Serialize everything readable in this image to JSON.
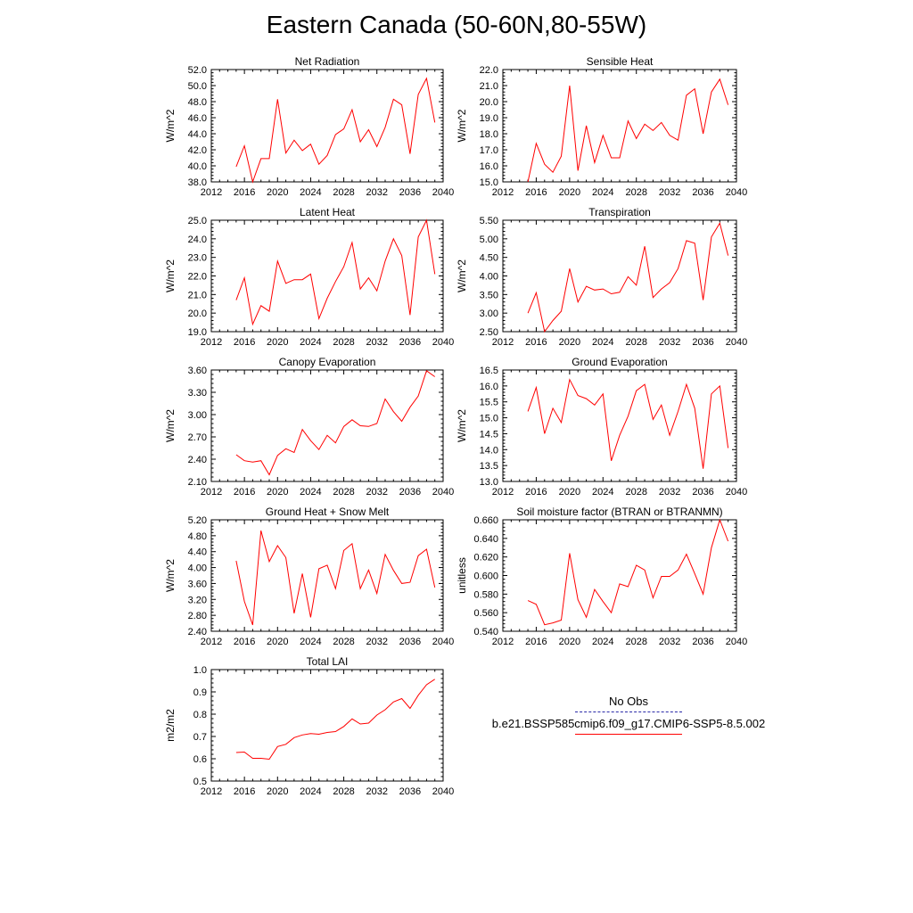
{
  "figure": {
    "title": "Eastern Canada (50-60N,80-55W)"
  },
  "colors": {
    "model_line": "#ff0000",
    "obs_line": "#2a2aa8",
    "axis": "#000000"
  },
  "legend": {
    "entries": [
      {
        "label": "No Obs",
        "style": "dashed",
        "color": "#2a2aa8"
      },
      {
        "label": "b.e21.BSSP585cmip6.f09_g17.CMIP6-SSP5-8.5.002",
        "style": "solid",
        "color": "#ff0000"
      }
    ]
  },
  "chart_data": [
    {
      "type": "line",
      "title": "Net Radiation",
      "ylabel": "W/m^2",
      "xlim": [
        2012,
        2040
      ],
      "xticks": [
        2012,
        2016,
        2020,
        2024,
        2028,
        2032,
        2036,
        2040
      ],
      "ylim": [
        38,
        52
      ],
      "yticks": [
        38,
        40,
        42,
        44,
        46,
        48,
        50,
        52
      ],
      "ytick_decimals": 1,
      "x": [
        2015,
        2016,
        2017,
        2018,
        2019,
        2020,
        2021,
        2022,
        2023,
        2024,
        2025,
        2026,
        2027,
        2028,
        2029,
        2030,
        2031,
        2032,
        2033,
        2034,
        2035,
        2036,
        2037,
        2038,
        2039
      ],
      "y": [
        39.9,
        42.5,
        38.0,
        40.9,
        40.9,
        48.3,
        41.6,
        43.2,
        41.9,
        42.7,
        40.2,
        41.3,
        43.9,
        44.6,
        47.0,
        43.0,
        44.5,
        42.4,
        44.8,
        48.3,
        47.6,
        41.5,
        48.9,
        50.9,
        45.4
      ]
    },
    {
      "type": "line",
      "title": "Sensible Heat",
      "ylabel": "W/m^2",
      "xlim": [
        2012,
        2040
      ],
      "xticks": [
        2012,
        2016,
        2020,
        2024,
        2028,
        2032,
        2036,
        2040
      ],
      "ylim": [
        15,
        22
      ],
      "yticks": [
        15,
        16,
        17,
        18,
        19,
        20,
        21,
        22
      ],
      "ytick_decimals": 1,
      "x": [
        2015,
        2016,
        2017,
        2018,
        2019,
        2020,
        2021,
        2022,
        2023,
        2024,
        2025,
        2026,
        2027,
        2028,
        2029,
        2030,
        2031,
        2032,
        2033,
        2034,
        2035,
        2036,
        2037,
        2038,
        2039
      ],
      "y": [
        15.0,
        17.4,
        16.1,
        15.6,
        16.6,
        21.0,
        15.7,
        18.5,
        16.2,
        17.9,
        16.5,
        16.5,
        18.8,
        17.7,
        18.6,
        18.2,
        18.7,
        17.9,
        17.6,
        20.4,
        20.8,
        18.0,
        20.6,
        21.4,
        19.8
      ]
    },
    {
      "type": "line",
      "title": "Latent Heat",
      "ylabel": "W/m^2",
      "xlim": [
        2012,
        2040
      ],
      "xticks": [
        2012,
        2016,
        2020,
        2024,
        2028,
        2032,
        2036,
        2040
      ],
      "ylim": [
        19,
        25
      ],
      "yticks": [
        19,
        20,
        21,
        22,
        23,
        24,
        25
      ],
      "ytick_decimals": 1,
      "x": [
        2015,
        2016,
        2017,
        2018,
        2019,
        2020,
        2021,
        2022,
        2023,
        2024,
        2025,
        2026,
        2027,
        2028,
        2029,
        2030,
        2031,
        2032,
        2033,
        2034,
        2035,
        2036,
        2037,
        2038,
        2039
      ],
      "y": [
        20.7,
        21.9,
        19.4,
        20.4,
        20.1,
        22.8,
        21.6,
        21.8,
        21.8,
        22.1,
        19.7,
        20.8,
        21.7,
        22.5,
        23.8,
        21.3,
        21.9,
        21.2,
        22.8,
        24.0,
        23.1,
        19.9,
        24.1,
        25.0,
        22.1
      ]
    },
    {
      "type": "line",
      "title": "Transpiration",
      "ylabel": "W/m^2",
      "xlim": [
        2012,
        2040
      ],
      "xticks": [
        2012,
        2016,
        2020,
        2024,
        2028,
        2032,
        2036,
        2040
      ],
      "ylim": [
        2.5,
        5.5
      ],
      "yticks": [
        2.5,
        3.0,
        3.5,
        4.0,
        4.5,
        5.0,
        5.5
      ],
      "ytick_decimals": 2,
      "x": [
        2015,
        2016,
        2017,
        2018,
        2019,
        2020,
        2021,
        2022,
        2023,
        2024,
        2025,
        2026,
        2027,
        2028,
        2029,
        2030,
        2031,
        2032,
        2033,
        2034,
        2035,
        2036,
        2037,
        2038,
        2039
      ],
      "y": [
        3.0,
        3.55,
        2.5,
        2.8,
        3.05,
        4.2,
        3.3,
        3.72,
        3.62,
        3.65,
        3.52,
        3.56,
        3.98,
        3.75,
        4.8,
        3.42,
        3.65,
        3.82,
        4.2,
        4.95,
        4.88,
        3.35,
        5.05,
        5.42,
        4.55
      ]
    },
    {
      "type": "line",
      "title": "Canopy Evaporation",
      "ylabel": "W/m^2",
      "xlim": [
        2012,
        2040
      ],
      "xticks": [
        2012,
        2016,
        2020,
        2024,
        2028,
        2032,
        2036,
        2040
      ],
      "ylim": [
        2.1,
        3.6
      ],
      "yticks": [
        2.1,
        2.4,
        2.7,
        3.0,
        3.3,
        3.6
      ],
      "ytick_decimals": 2,
      "x": [
        2015,
        2016,
        2017,
        2018,
        2019,
        2020,
        2021,
        2022,
        2023,
        2024,
        2025,
        2026,
        2027,
        2028,
        2029,
        2030,
        2031,
        2032,
        2033,
        2034,
        2035,
        2036,
        2037,
        2038,
        2039
      ],
      "y": [
        2.46,
        2.38,
        2.36,
        2.38,
        2.19,
        2.45,
        2.54,
        2.49,
        2.8,
        2.65,
        2.53,
        2.72,
        2.62,
        2.84,
        2.93,
        2.85,
        2.84,
        2.88,
        3.21,
        3.04,
        2.91,
        3.1,
        3.25,
        3.59,
        3.51
      ]
    },
    {
      "type": "line",
      "title": "Ground Evaporation",
      "ylabel": "W/m^2",
      "xlim": [
        2012,
        2040
      ],
      "xticks": [
        2012,
        2016,
        2020,
        2024,
        2028,
        2032,
        2036,
        2040
      ],
      "ylim": [
        13,
        16.5
      ],
      "yticks": [
        13.0,
        13.5,
        14.0,
        14.5,
        15.0,
        15.5,
        16.0,
        16.5
      ],
      "ytick_decimals": 1,
      "x": [
        2015,
        2016,
        2017,
        2018,
        2019,
        2020,
        2021,
        2022,
        2023,
        2024,
        2025,
        2026,
        2027,
        2028,
        2029,
        2030,
        2031,
        2032,
        2033,
        2034,
        2035,
        2036,
        2037,
        2038,
        2039
      ],
      "y": [
        15.2,
        15.95,
        14.5,
        15.3,
        14.85,
        16.2,
        15.7,
        15.6,
        15.4,
        15.75,
        13.65,
        14.45,
        15.05,
        15.85,
        16.05,
        14.95,
        15.4,
        14.45,
        15.2,
        16.05,
        15.3,
        13.4,
        15.75,
        16.0,
        14.05
      ]
    },
    {
      "type": "line",
      "title": "Ground Heat + Snow Melt",
      "ylabel": "W/m^2",
      "xlim": [
        2012,
        2040
      ],
      "xticks": [
        2012,
        2016,
        2020,
        2024,
        2028,
        2032,
        2036,
        2040
      ],
      "ylim": [
        2.4,
        5.2
      ],
      "yticks": [
        2.4,
        2.8,
        3.2,
        3.6,
        4.0,
        4.4,
        4.8,
        5.2
      ],
      "ytick_decimals": 2,
      "x": [
        2015,
        2016,
        2017,
        2018,
        2019,
        2020,
        2021,
        2022,
        2023,
        2024,
        2025,
        2026,
        2027,
        2028,
        2029,
        2030,
        2031,
        2032,
        2033,
        2034,
        2035,
        2036,
        2037,
        2038,
        2039
      ],
      "y": [
        4.17,
        3.15,
        2.56,
        4.93,
        4.15,
        4.55,
        4.25,
        2.85,
        3.85,
        2.75,
        3.97,
        4.06,
        3.47,
        4.43,
        4.6,
        3.47,
        3.94,
        3.35,
        4.33,
        3.93,
        3.6,
        3.63,
        4.3,
        4.46,
        3.5
      ]
    },
    {
      "type": "line",
      "title": "Soil moisture factor (BTRAN or BTRANMN)",
      "ylabel": "unitless",
      "xlim": [
        2012,
        2040
      ],
      "xticks": [
        2012,
        2016,
        2020,
        2024,
        2028,
        2032,
        2036,
        2040
      ],
      "ylim": [
        0.54,
        0.66
      ],
      "yticks": [
        0.54,
        0.56,
        0.58,
        0.6,
        0.62,
        0.64,
        0.66
      ],
      "ytick_decimals": 3,
      "x": [
        2015,
        2016,
        2017,
        2018,
        2019,
        2020,
        2021,
        2022,
        2023,
        2024,
        2025,
        2026,
        2027,
        2028,
        2029,
        2030,
        2031,
        2032,
        2033,
        2034,
        2035,
        2036,
        2037,
        2038,
        2039
      ],
      "y": [
        0.573,
        0.569,
        0.547,
        0.549,
        0.552,
        0.624,
        0.574,
        0.555,
        0.585,
        0.572,
        0.56,
        0.591,
        0.588,
        0.611,
        0.606,
        0.576,
        0.599,
        0.599,
        0.606,
        0.623,
        0.602,
        0.58,
        0.63,
        0.66,
        0.637
      ]
    },
    {
      "type": "line",
      "title": "Total LAI",
      "ylabel": "m2/m2",
      "xlim": [
        2012,
        2040
      ],
      "xticks": [
        2012,
        2016,
        2020,
        2024,
        2028,
        2032,
        2036,
        2040
      ],
      "ylim": [
        0.5,
        1.0
      ],
      "yticks": [
        0.5,
        0.6,
        0.7,
        0.8,
        0.9,
        1.0
      ],
      "ytick_decimals": 1,
      "x": [
        2015,
        2016,
        2017,
        2018,
        2019,
        2020,
        2021,
        2022,
        2023,
        2024,
        2025,
        2026,
        2027,
        2028,
        2029,
        2030,
        2031,
        2032,
        2033,
        2034,
        2035,
        2036,
        2037,
        2038,
        2039
      ],
      "y": [
        0.628,
        0.63,
        0.602,
        0.602,
        0.598,
        0.655,
        0.665,
        0.695,
        0.707,
        0.713,
        0.71,
        0.718,
        0.722,
        0.745,
        0.779,
        0.756,
        0.76,
        0.796,
        0.82,
        0.855,
        0.87,
        0.826,
        0.885,
        0.932,
        0.957
      ]
    }
  ]
}
